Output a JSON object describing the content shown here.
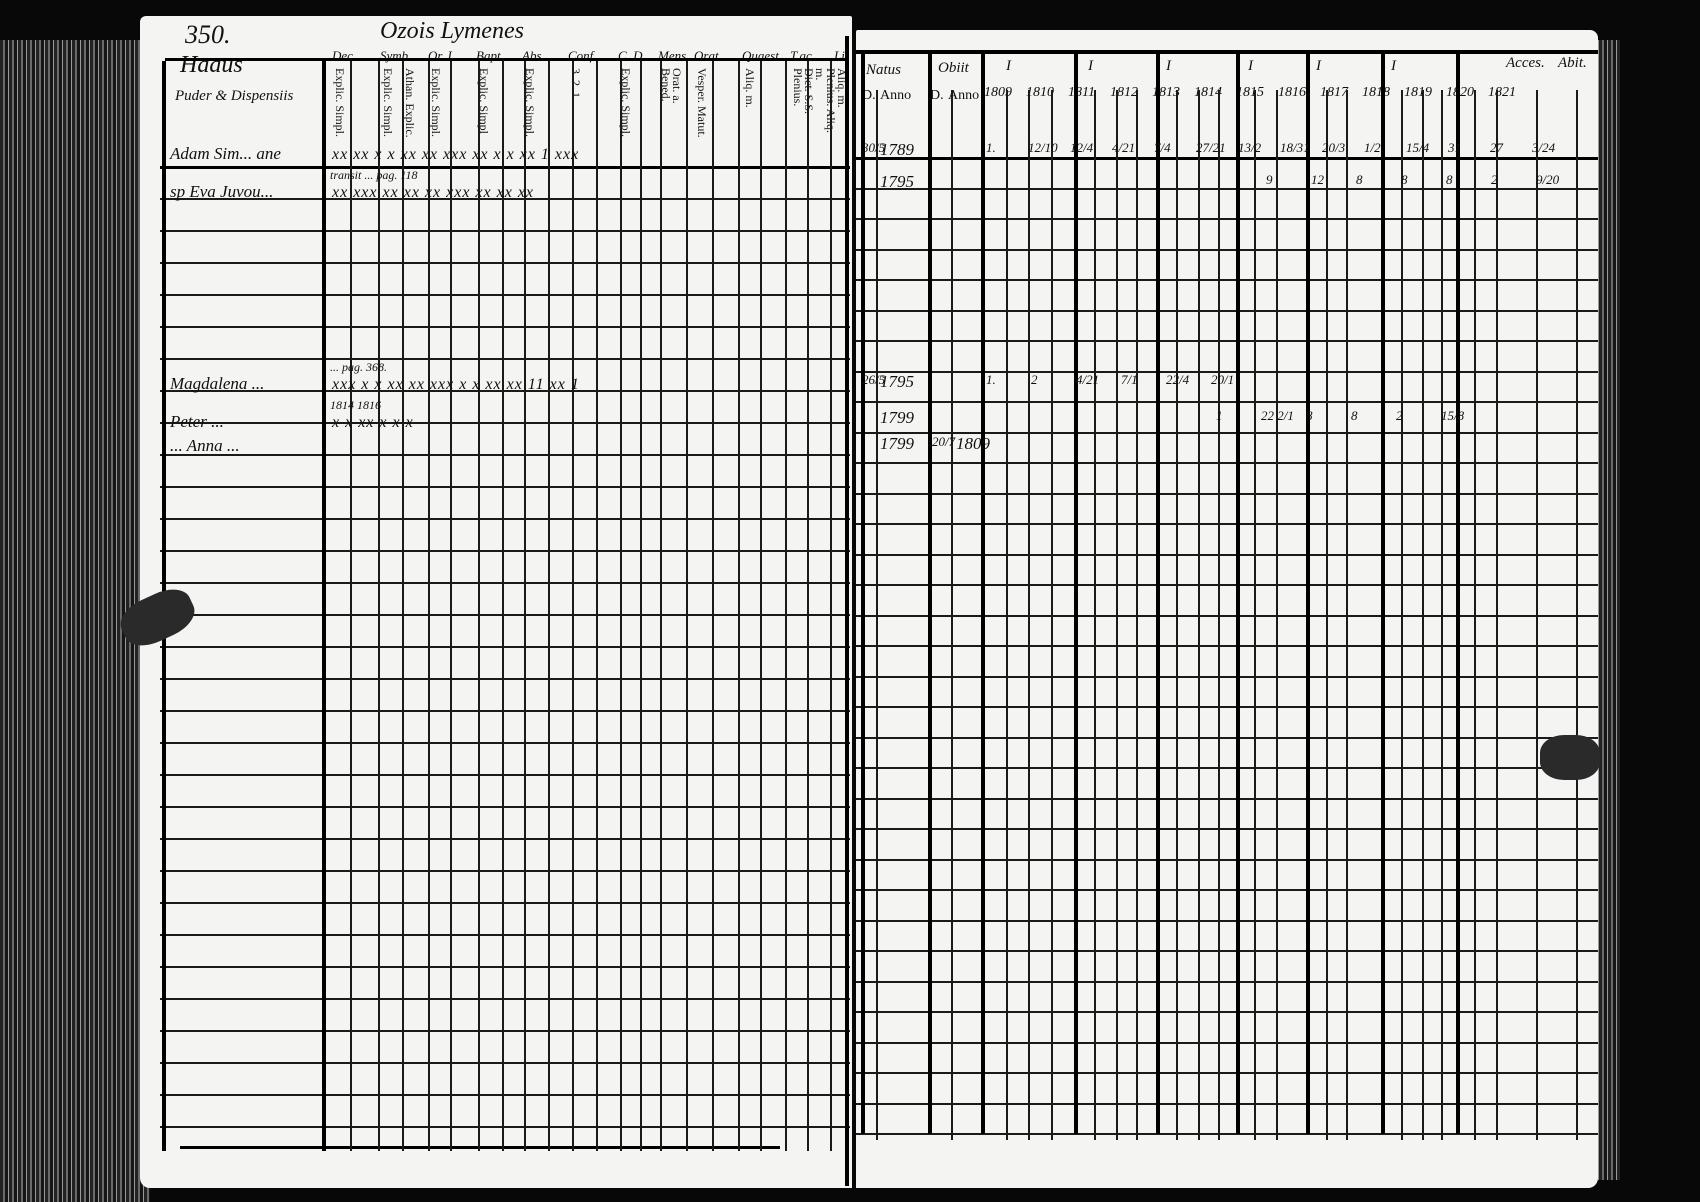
{
  "left_page": {
    "page_number": "350.",
    "title": "Ozois Lymenes",
    "name_header": [
      "Haaus",
      "Puder & Dispensiis"
    ],
    "columns": [
      {
        "group": "Dec.",
        "subs": [
          "Explic. Simpl."
        ]
      },
      {
        "group": "Symb.",
        "subs": [
          "Explic. Simpl.",
          "Athan. Explic."
        ]
      },
      {
        "group": "Or. I",
        "subs": [
          "Explic. Simpl."
        ]
      },
      {
        "group": "Bapt.",
        "subs": [
          "Explic. Simpl"
        ]
      },
      {
        "group": "Abs.",
        "subs": [
          "Explic. Simpl."
        ]
      },
      {
        "group": "Conf.",
        "subs": [
          "3. 2. 1."
        ]
      },
      {
        "group": "C. D.",
        "subs": [
          "Explic. Simpl."
        ]
      },
      {
        "group": "Mens.",
        "subs": [
          "Orat. a. Bened."
        ]
      },
      {
        "group": "Orat.",
        "subs": [
          "Vesper. Matut."
        ]
      },
      {
        "group": "Quaest.",
        "subs": [
          "Aliq. m."
        ]
      },
      {
        "group": "T.ac",
        "subs": [
          "Dict. S.S. Plenius.",
          "Plenius. Aliq. m."
        ]
      },
      {
        "group": "Li.",
        "subs": [
          "Aliq. m."
        ]
      }
    ],
    "entries": [
      {
        "name": "Adam Sim... ane",
        "marks": "xx  xx  x x  xx  xx  xxx  xx  x x  xx  1  xxx"
      },
      {
        "name": "sp Eva Juvou...",
        "note": "transit ... pag. 118",
        "marks": "xx  xxx  xx  xx  xx  xxx  xx  xx  xx"
      },
      {
        "name": "Magdalena ...",
        "note": "... pag. 368.",
        "marks": "xxx  x x  xx  xx  xxx  x x  xx  xx  11  xx 1"
      },
      {
        "name": "Peter ...",
        "note": "1814  1816",
        "marks": "x   x   xx  x   x x"
      },
      {
        "name": "... Anna ..."
      }
    ]
  },
  "right_page": {
    "headers": {
      "natus": "Natus",
      "natus_sub": [
        "D.",
        "Anno"
      ],
      "obiit": "Obiit",
      "obiit_sub": [
        "D.",
        "Anno"
      ],
      "acces": "Acces.",
      "abit": "Abit."
    },
    "group_marks": [
      "I",
      "I",
      "I",
      "I",
      "I",
      "I"
    ],
    "years": [
      "1809",
      "1810",
      "1811",
      "1812",
      "1813",
      "1814",
      "1815",
      "1816",
      "1817",
      "1818",
      "1819",
      "1820",
      "1821"
    ],
    "rows": [
      {
        "natus_d": "30/5",
        "natus_anno": "1789",
        "cells": [
          "1.",
          "12/10",
          "12/4",
          "4/21",
          "7/4",
          "27/21",
          "13/2",
          "18/31",
          "20/3",
          "1/2",
          "15/4",
          "31",
          "27",
          "3/24"
        ]
      },
      {
        "natus_anno": "1795",
        "cells": [
          "9",
          "12",
          "8",
          "8",
          "8",
          "2",
          "9/20"
        ]
      },
      {
        "natus_d": "26/5",
        "natus_anno": "1795",
        "cells": [
          "1.",
          "2",
          "4/21",
          "7/1",
          "22/4",
          "20/1"
        ]
      },
      {
        "natus_anno": "1799",
        "cells": [
          "1",
          "22 2/1",
          "8",
          "8",
          "2",
          "15/8"
        ]
      },
      {
        "natus_anno": "1799",
        "obiit_d": "20/7",
        "obiit_anno": "1809"
      }
    ]
  }
}
